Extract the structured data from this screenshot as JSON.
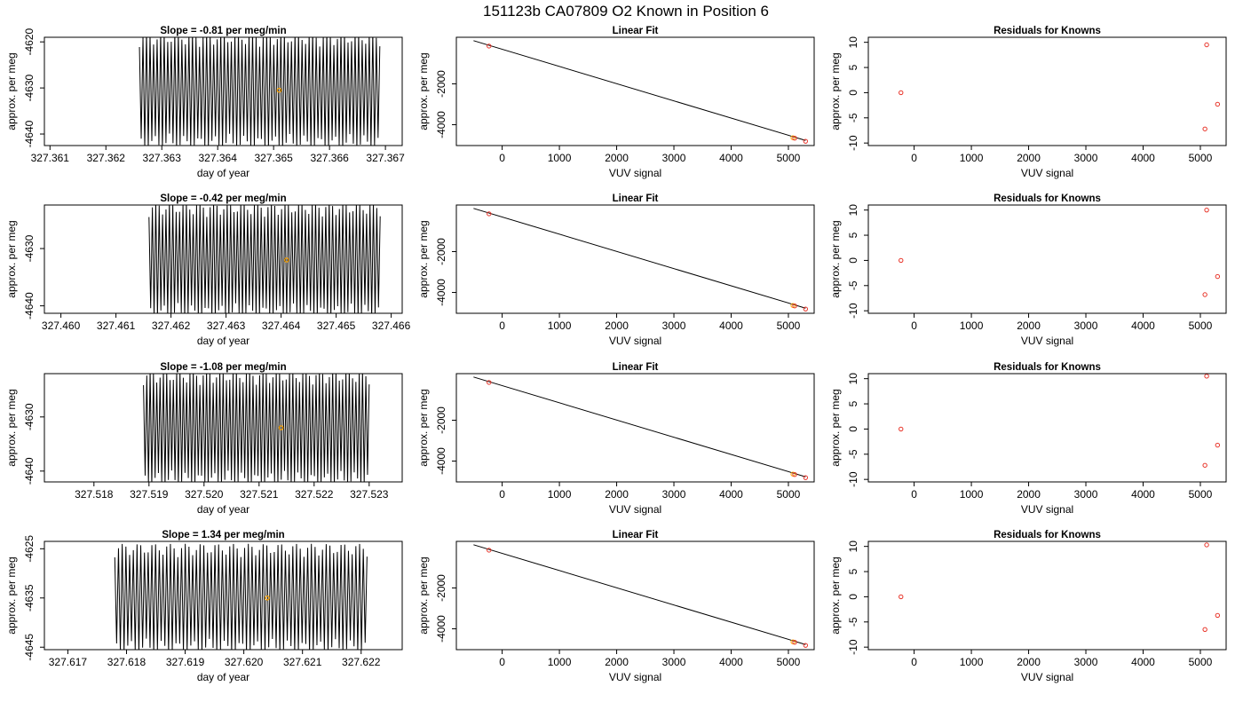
{
  "figure": {
    "title": "151123b     CA07809   O2 Known in Position  6",
    "colors": {
      "line": "#000000",
      "frame": "#000000",
      "marker_orange": "#ffa500",
      "marker_red": "#e8352a"
    }
  },
  "chart_data": [
    {
      "type": "line",
      "title": "Slope =  -0.81  per meg/min",
      "xlabel": "day of year",
      "ylabel": "approx. per meg",
      "xlim": [
        327.3609,
        327.3673
      ],
      "ylim": [
        -4642.5,
        -4619.0
      ],
      "xticks": [
        "327.361",
        "327.362",
        "327.363",
        "327.364",
        "327.365",
        "327.366",
        "327.367"
      ],
      "xtick_values": [
        327.361,
        327.362,
        327.363,
        327.364,
        327.365,
        327.366,
        327.367
      ],
      "yticks": [
        "-4620",
        "-4630",
        "-4640"
      ],
      "ytick_values": [
        -4620,
        -4630,
        -4640
      ],
      "x_start": 327.3626,
      "x_end": 327.3669,
      "y_mean": -4630.5,
      "y_amplitude": 12.5,
      "oscillations": 68,
      "marker": {
        "x": 327.3651,
        "y": -4630.5
      }
    },
    {
      "type": "scatter",
      "title": "Linear Fit",
      "xlabel": "VUV signal",
      "ylabel": "approx. per meg",
      "xlim": [
        -800,
        5450
      ],
      "ylim": [
        -5020,
        280
      ],
      "xticks": [
        "0",
        "1000",
        "2000",
        "3000",
        "4000",
        "5000"
      ],
      "xtick_values": [
        0,
        1000,
        2000,
        3000,
        4000,
        5000
      ],
      "yticks": [
        "-2000",
        "-4000"
      ],
      "ytick_values": [
        -2000,
        -4000
      ],
      "fit_line": {
        "x": [
          -500,
          5300
        ],
        "y": [
          115,
          -4770
        ]
      },
      "points": [
        {
          "x": -230,
          "y": -150
        },
        {
          "x": 5080,
          "y": -4640
        },
        {
          "x": 5110,
          "y": -4660
        },
        {
          "x": 5300,
          "y": -4810
        }
      ]
    },
    {
      "type": "scatter",
      "title": "Residuals for Knowns",
      "xlabel": "VUV signal",
      "ylabel": "approx. per meg",
      "xlim": [
        -800,
        5450
      ],
      "ylim": [
        -10.5,
        11
      ],
      "xticks": [
        "0",
        "1000",
        "2000",
        "3000",
        "4000",
        "5000"
      ],
      "xtick_values": [
        0,
        1000,
        2000,
        3000,
        4000,
        5000
      ],
      "yticks": [
        "10",
        "5",
        "0",
        "-5",
        "-10"
      ],
      "ytick_values": [
        10,
        5,
        0,
        -5,
        -10
      ],
      "points": [
        {
          "x": -230,
          "y": 0
        },
        {
          "x": 5080,
          "y": -7.2
        },
        {
          "x": 5110,
          "y": 9.5
        },
        {
          "x": 5300,
          "y": -2.3
        }
      ]
    },
    {
      "type": "line",
      "title": "Slope =  -0.42  per meg/min",
      "xlabel": "day of year",
      "ylabel": "approx. per meg",
      "xlim": [
        327.4597,
        327.4662
      ],
      "ylim": [
        -4641.3,
        -4622.4
      ],
      "xticks": [
        "327.460",
        "327.461",
        "327.462",
        "327.463",
        "327.464",
        "327.465",
        "327.466"
      ],
      "xtick_values": [
        327.46,
        327.461,
        327.462,
        327.463,
        327.464,
        327.465,
        327.466
      ],
      "yticks": [
        "-4630",
        "-4640"
      ],
      "ytick_values": [
        -4630,
        -4640
      ],
      "x_start": 327.4616,
      "x_end": 327.4658,
      "y_mean": -4632.0,
      "y_amplitude": 10.0,
      "oscillations": 68,
      "marker": {
        "x": 327.4641,
        "y": -4632.0
      }
    },
    {
      "type": "scatter",
      "title": "Linear Fit",
      "xlabel": "VUV signal",
      "ylabel": "approx. per meg",
      "xlim": [
        -800,
        5450
      ],
      "ylim": [
        -5020,
        280
      ],
      "xticks": [
        "0",
        "1000",
        "2000",
        "3000",
        "4000",
        "5000"
      ],
      "xtick_values": [
        0,
        1000,
        2000,
        3000,
        4000,
        5000
      ],
      "yticks": [
        "-2000",
        "-4000"
      ],
      "ytick_values": [
        -2000,
        -4000
      ],
      "fit_line": {
        "x": [
          -500,
          5300
        ],
        "y": [
          115,
          -4770
        ]
      },
      "points": [
        {
          "x": -230,
          "y": -150
        },
        {
          "x": 5080,
          "y": -4640
        },
        {
          "x": 5110,
          "y": -4660
        },
        {
          "x": 5300,
          "y": -4810
        }
      ]
    },
    {
      "type": "scatter",
      "title": "Residuals for Knowns",
      "xlabel": "VUV signal",
      "ylabel": "approx. per meg",
      "xlim": [
        -800,
        5450
      ],
      "ylim": [
        -10.5,
        11
      ],
      "xticks": [
        "0",
        "1000",
        "2000",
        "3000",
        "4000",
        "5000"
      ],
      "xtick_values": [
        0,
        1000,
        2000,
        3000,
        4000,
        5000
      ],
      "yticks": [
        "10",
        "5",
        "0",
        "-5",
        "-10"
      ],
      "ytick_values": [
        10,
        5,
        0,
        -5,
        -10
      ],
      "points": [
        {
          "x": -230,
          "y": 0
        },
        {
          "x": 5080,
          "y": -6.8
        },
        {
          "x": 5110,
          "y": 10
        },
        {
          "x": 5300,
          "y": -3.2
        }
      ]
    },
    {
      "type": "line",
      "title": "Slope =  -1.08  per meg/min",
      "xlabel": "day of year",
      "ylabel": "approx. per meg",
      "xlim": [
        327.5171,
        327.5236
      ],
      "ylim": [
        -4642.0,
        -4622.0
      ],
      "xticks": [
        "327.518",
        "327.519",
        "327.520",
        "327.521",
        "327.522",
        "327.523"
      ],
      "xtick_values": [
        327.518,
        327.519,
        327.52,
        327.521,
        327.522,
        327.523
      ],
      "yticks": [
        "-4630",
        "-4640"
      ],
      "ytick_values": [
        -4630,
        -4640
      ],
      "x_start": 327.5189,
      "x_end": 327.523,
      "y_mean": -4632.0,
      "y_amplitude": 10.5,
      "oscillations": 68,
      "marker": {
        "x": 327.5214,
        "y": -4632.0
      }
    },
    {
      "type": "scatter",
      "title": "Linear Fit",
      "xlabel": "VUV signal",
      "ylabel": "approx. per meg",
      "xlim": [
        -800,
        5450
      ],
      "ylim": [
        -5020,
        280
      ],
      "xticks": [
        "0",
        "1000",
        "2000",
        "3000",
        "4000",
        "5000"
      ],
      "xtick_values": [
        0,
        1000,
        2000,
        3000,
        4000,
        5000
      ],
      "yticks": [
        "-2000",
        "-4000"
      ],
      "ytick_values": [
        -2000,
        -4000
      ],
      "fit_line": {
        "x": [
          -500,
          5300
        ],
        "y": [
          115,
          -4770
        ]
      },
      "points": [
        {
          "x": -230,
          "y": -150
        },
        {
          "x": 5080,
          "y": -4640
        },
        {
          "x": 5110,
          "y": -4660
        },
        {
          "x": 5300,
          "y": -4810
        }
      ]
    },
    {
      "type": "scatter",
      "title": "Residuals for Knowns",
      "xlabel": "VUV signal",
      "ylabel": "approx. per meg",
      "xlim": [
        -800,
        5450
      ],
      "ylim": [
        -10.5,
        11
      ],
      "xticks": [
        "0",
        "1000",
        "2000",
        "3000",
        "4000",
        "5000"
      ],
      "xtick_values": [
        0,
        1000,
        2000,
        3000,
        4000,
        5000
      ],
      "yticks": [
        "10",
        "5",
        "0",
        "-5",
        "-10"
      ],
      "ytick_values": [
        10,
        5,
        0,
        -5,
        -10
      ],
      "points": [
        {
          "x": -230,
          "y": 0
        },
        {
          "x": 5080,
          "y": -7.2
        },
        {
          "x": 5110,
          "y": 10.5
        },
        {
          "x": 5300,
          "y": -3.2
        }
      ]
    },
    {
      "type": "line",
      "title": "Slope =  1.34  per meg/min",
      "xlabel": "day of year",
      "ylabel": "approx. per meg",
      "xlim": [
        327.6166,
        327.6227
      ],
      "ylim": [
        -4645.5,
        -4623.5
      ],
      "xticks": [
        "327.617",
        "327.618",
        "327.619",
        "327.620",
        "327.621",
        "327.622"
      ],
      "xtick_values": [
        327.617,
        327.618,
        327.619,
        327.62,
        327.621,
        327.622
      ],
      "yticks": [
        "-4625",
        "-4635",
        "-4645"
      ],
      "ytick_values": [
        -4625,
        -4635,
        -4645
      ],
      "x_start": 327.6178,
      "x_end": 327.6221,
      "y_mean": -4635.0,
      "y_amplitude": 11.0,
      "oscillations": 68,
      "marker": {
        "x": 327.6204,
        "y": -4635.0
      }
    },
    {
      "type": "scatter",
      "title": "Linear Fit",
      "xlabel": "VUV signal",
      "ylabel": "approx. per meg",
      "xlim": [
        -800,
        5450
      ],
      "ylim": [
        -5020,
        280
      ],
      "xticks": [
        "0",
        "1000",
        "2000",
        "3000",
        "4000",
        "5000"
      ],
      "xtick_values": [
        0,
        1000,
        2000,
        3000,
        4000,
        5000
      ],
      "yticks": [
        "-2000",
        "-4000"
      ],
      "ytick_values": [
        -2000,
        -4000
      ],
      "fit_line": {
        "x": [
          -500,
          5300
        ],
        "y": [
          115,
          -4770
        ]
      },
      "points": [
        {
          "x": -230,
          "y": -150
        },
        {
          "x": 5080,
          "y": -4640
        },
        {
          "x": 5110,
          "y": -4660
        },
        {
          "x": 5300,
          "y": -4810
        }
      ]
    },
    {
      "type": "scatter",
      "title": "Residuals for Knowns",
      "xlabel": "VUV signal",
      "ylabel": "approx. per meg",
      "xlim": [
        -800,
        5450
      ],
      "ylim": [
        -10.5,
        11
      ],
      "xticks": [
        "0",
        "1000",
        "2000",
        "3000",
        "4000",
        "5000"
      ],
      "xtick_values": [
        0,
        1000,
        2000,
        3000,
        4000,
        5000
      ],
      "yticks": [
        "10",
        "5",
        "0",
        "-5",
        "-10"
      ],
      "ytick_values": [
        10,
        5,
        0,
        -5,
        -10
      ],
      "points": [
        {
          "x": -230,
          "y": 0
        },
        {
          "x": 5080,
          "y": -6.5
        },
        {
          "x": 5110,
          "y": 10.3
        },
        {
          "x": 5300,
          "y": -3.7
        }
      ]
    }
  ]
}
